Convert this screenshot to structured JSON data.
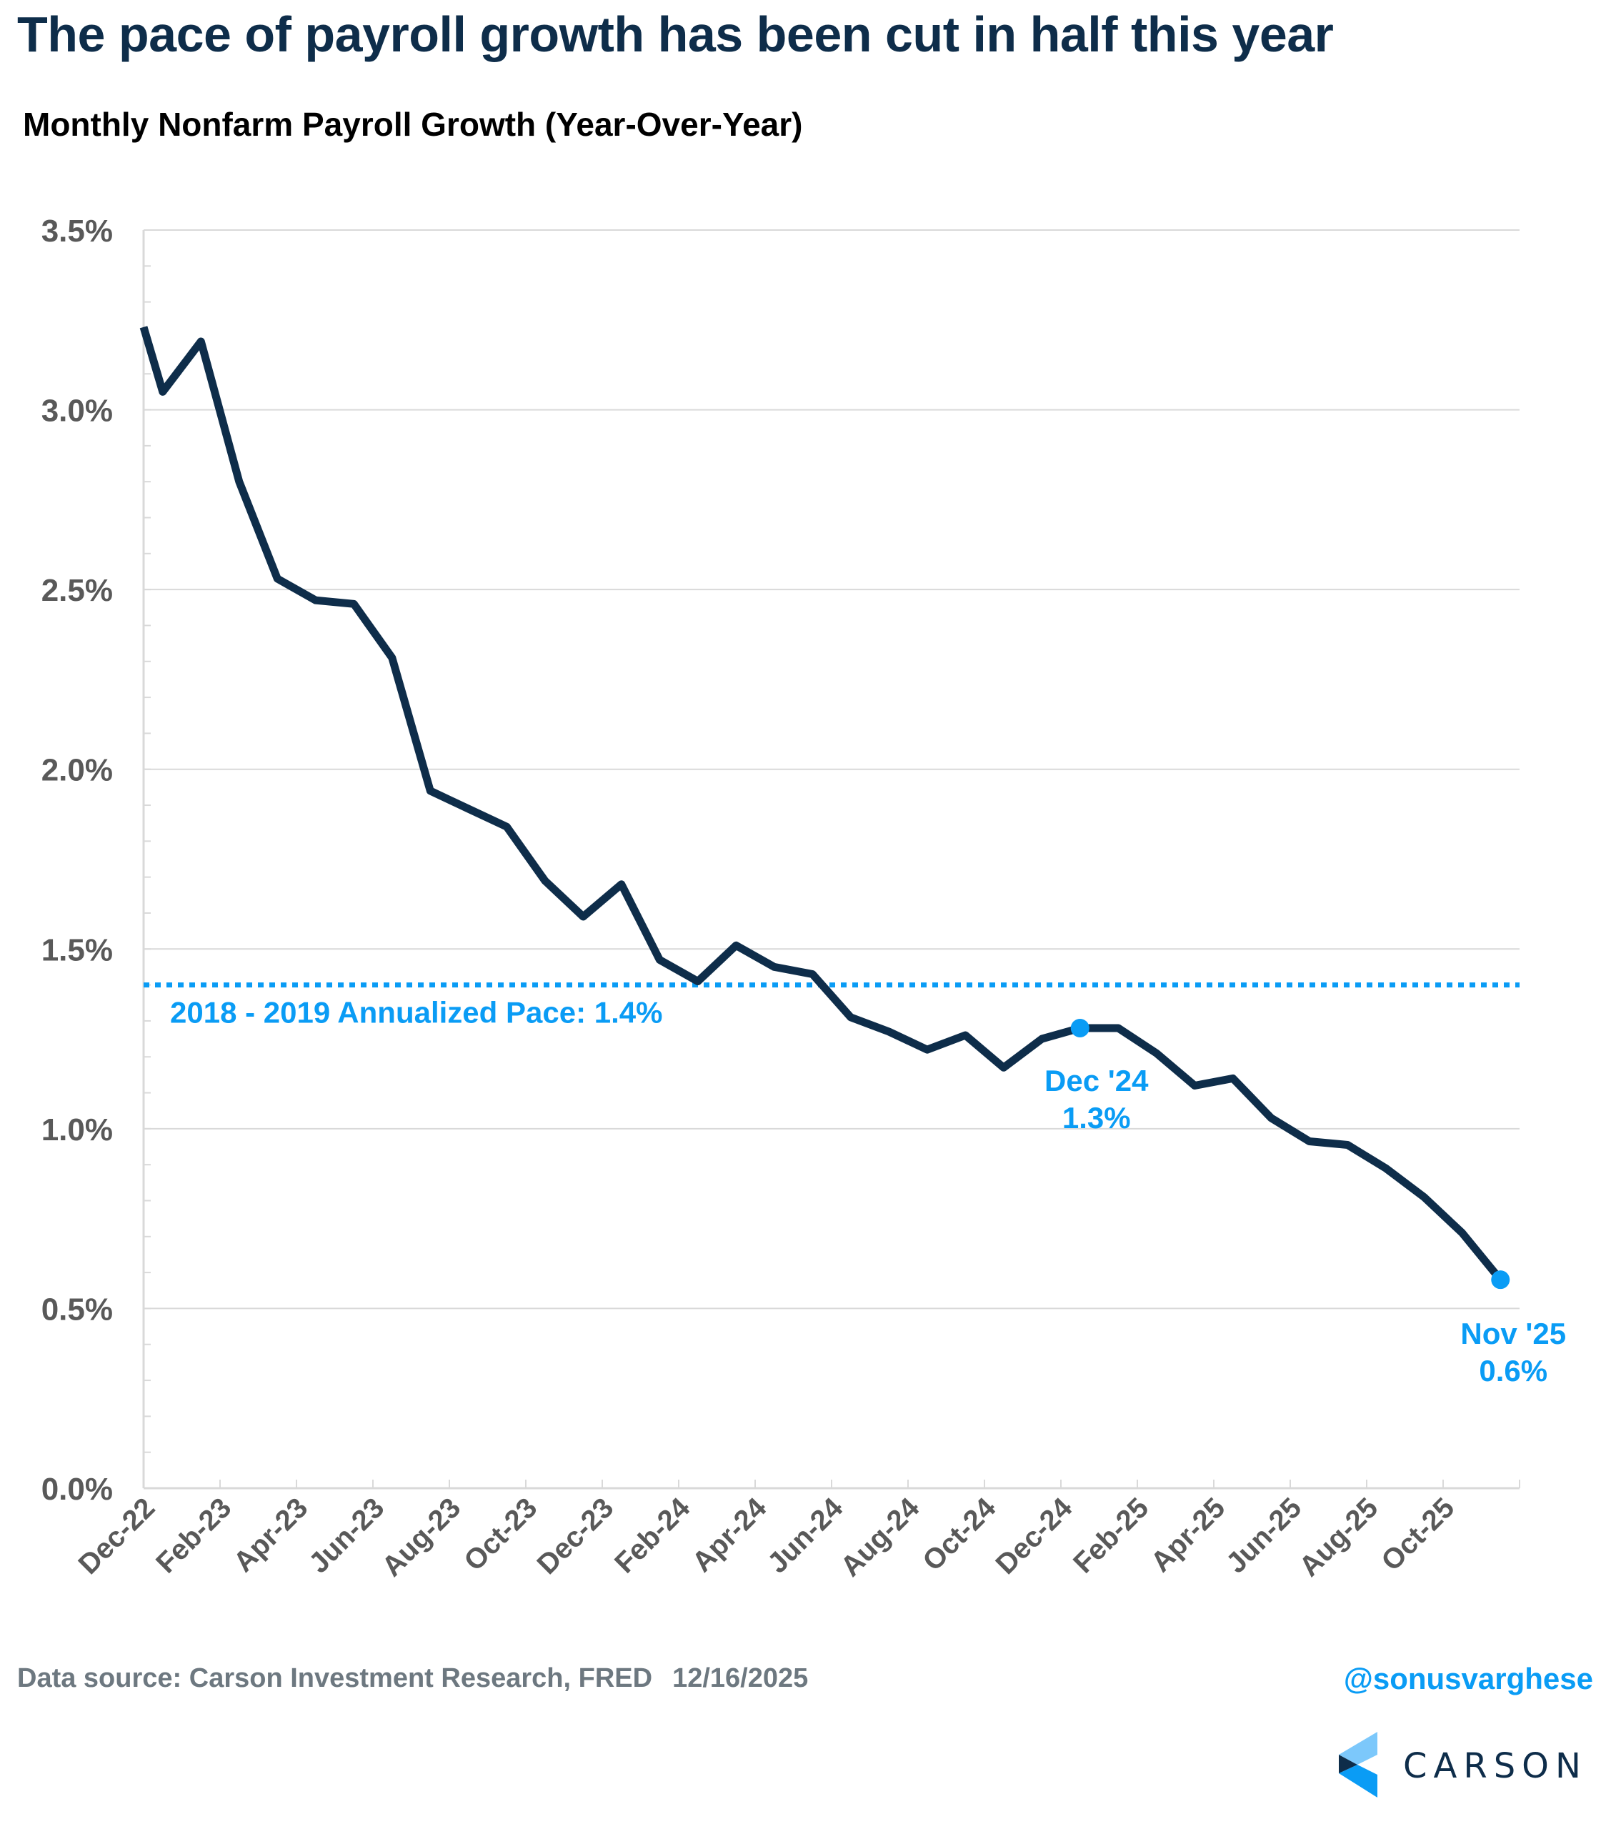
{
  "header": {
    "title": "The pace of payroll growth has been cut in half this year",
    "subtitle": "Monthly Nonfarm Payroll Growth (Year-Over-Year)"
  },
  "footer": {
    "source": "Data source: Carson Investment Research, FRED",
    "date": "12/16/2025",
    "handle": "@sonusvarghese",
    "logo_text": "CARSON",
    "logo_icon": "carson-chevron-logo-icon"
  },
  "colors": {
    "line": "#0e2d4a",
    "accent": "#0a9cf5",
    "axis_text": "#595959",
    "grid": "#d9d9d9",
    "logo_light": "#7cc8fb",
    "logo_mid": "#0a9cf5",
    "logo_dark": "#0e2d4a"
  },
  "chart_data": {
    "type": "line",
    "title": "Monthly Nonfarm Payroll Growth (Year-Over-Year)",
    "xlabel": "",
    "ylabel": "",
    "ylim": [
      0,
      3.5
    ],
    "yticks": [
      0,
      0.5,
      1.0,
      1.5,
      2.0,
      2.5,
      3.0,
      3.5
    ],
    "ytick_labels": [
      "0.0%",
      "0.5%",
      "1.0%",
      "1.5%",
      "2.0%",
      "2.5%",
      "3.0%",
      "3.5%"
    ],
    "y_minor_step": 0.1,
    "grid": true,
    "x_start_clipped_value": 3.23,
    "categories": [
      "Dec-22",
      "Jan-23",
      "Feb-23",
      "Mar-23",
      "Apr-23",
      "May-23",
      "Jun-23",
      "Jul-23",
      "Aug-23",
      "Sep-23",
      "Oct-23",
      "Nov-23",
      "Dec-23",
      "Jan-24",
      "Feb-24",
      "Mar-24",
      "Apr-24",
      "May-24",
      "Jun-24",
      "Jul-24",
      "Aug-24",
      "Sep-24",
      "Oct-24",
      "Nov-24",
      "Dec-24",
      "Jan-25",
      "Feb-25",
      "Mar-25",
      "Apr-25",
      "May-25",
      "Jun-25",
      "Jul-25",
      "Aug-25",
      "Sep-25",
      "Oct-25",
      "Nov-25"
    ],
    "xtick_labels": [
      "Dec-22",
      "Feb-23",
      "Apr-23",
      "Jun-23",
      "Aug-23",
      "Oct-23",
      "Dec-23",
      "Feb-24",
      "Apr-24",
      "Jun-24",
      "Aug-24",
      "Oct-24",
      "Dec-24",
      "Feb-25",
      "Apr-25",
      "Jun-25",
      "Aug-25",
      "Oct-25"
    ],
    "series": [
      {
        "name": "Nonfarm Payroll Growth YoY (%)",
        "values": [
          3.05,
          3.19,
          2.8,
          2.53,
          2.47,
          2.46,
          2.31,
          1.94,
          1.89,
          1.84,
          1.69,
          1.59,
          1.68,
          1.47,
          1.41,
          1.51,
          1.45,
          1.43,
          1.31,
          1.27,
          1.22,
          1.26,
          1.17,
          1.25,
          1.28,
          1.28,
          1.21,
          1.12,
          1.14,
          1.03,
          0.965,
          0.955,
          0.89,
          0.81,
          0.71,
          0.58
        ]
      }
    ],
    "reference_line": {
      "value": 1.4,
      "style": "dotted",
      "label": "2018 - 2019 Annualized Pace: 1.4%"
    },
    "annotations": [
      {
        "category": "Dec-24",
        "value": 1.28,
        "line1": "Dec '24",
        "line2": "1.3%"
      },
      {
        "category": "Nov-25",
        "value": 0.58,
        "line1": "Nov '25",
        "line2": "0.6%"
      }
    ]
  }
}
